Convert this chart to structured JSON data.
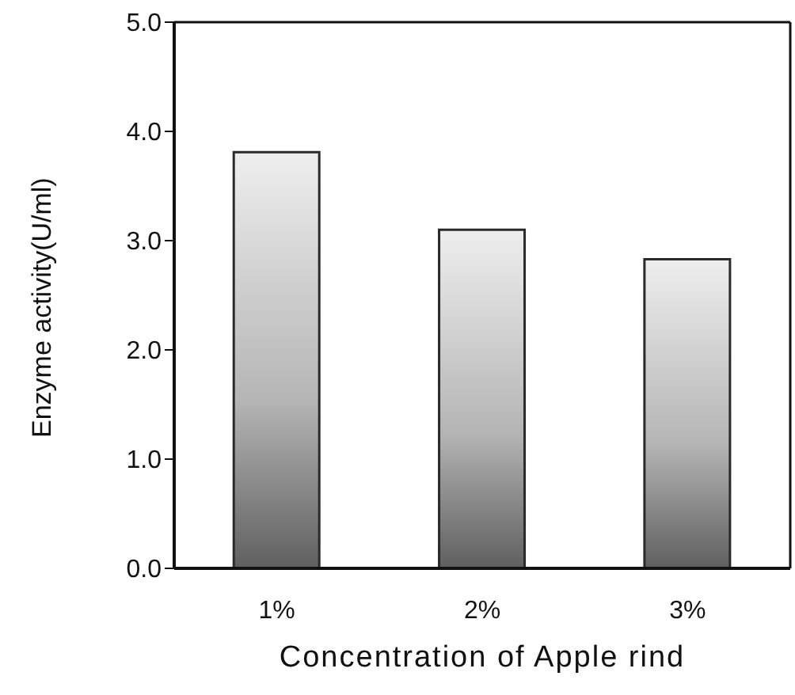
{
  "chart_data": {
    "type": "bar",
    "xlabel": "Concentration of Apple rind",
    "ylabel": "Enzyme activity(U/ml)",
    "categories": [
      "1%",
      "2%",
      "3%"
    ],
    "values": [
      3.81,
      3.1,
      2.83
    ],
    "color": "#2a2a2a",
    "ylim": [
      0,
      5
    ],
    "yticks": [
      {
        "value": 0,
        "label": "0.0"
      },
      {
        "value": 1,
        "label": "1.0"
      },
      {
        "value": 2,
        "label": "2.0"
      },
      {
        "value": 3,
        "label": "3.0"
      },
      {
        "value": 4,
        "label": "4.0"
      },
      {
        "value": 5,
        "label": "5.0"
      }
    ],
    "grid": false,
    "legend": false
  }
}
